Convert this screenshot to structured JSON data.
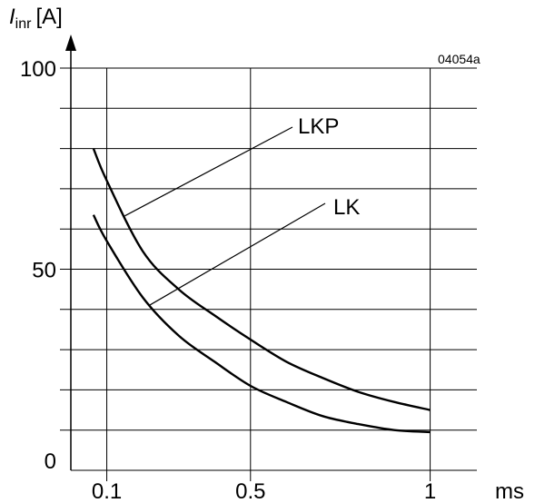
{
  "chart_data": {
    "type": "line",
    "ylabel": {
      "symbol": "I",
      "subscript": "inr",
      "unit": "[A]"
    },
    "xlabel": "ms",
    "figure_code": "04054a",
    "xlim": [
      0,
      1.13
    ],
    "ylim": [
      0,
      100
    ],
    "x_ticks": [
      {
        "value": 0.1,
        "label": "0.1"
      },
      {
        "value": 0.5,
        "label": "0.5"
      },
      {
        "value": 1,
        "label": "1"
      }
    ],
    "y_ticks": [
      {
        "value": 0,
        "label": "0"
      },
      {
        "value": 50,
        "label": "50"
      },
      {
        "value": 100,
        "label": "100"
      }
    ],
    "grid": true,
    "series": [
      {
        "name": "LKP",
        "x": [
          0.063,
          0.1,
          0.2,
          0.3,
          0.4,
          0.5,
          0.6,
          0.7,
          0.8,
          0.9,
          1.0
        ],
        "y": [
          80,
          72,
          54.5,
          45,
          38.5,
          32.5,
          27,
          23,
          19.5,
          17,
          15
        ]
      },
      {
        "name": "LK",
        "x": [
          0.063,
          0.1,
          0.2,
          0.3,
          0.4,
          0.5,
          0.6,
          0.7,
          0.8,
          0.9,
          1.0
        ],
        "y": [
          63.5,
          57,
          43,
          33.5,
          27,
          21,
          17,
          13.5,
          11.5,
          10,
          9.5
        ]
      }
    ]
  }
}
